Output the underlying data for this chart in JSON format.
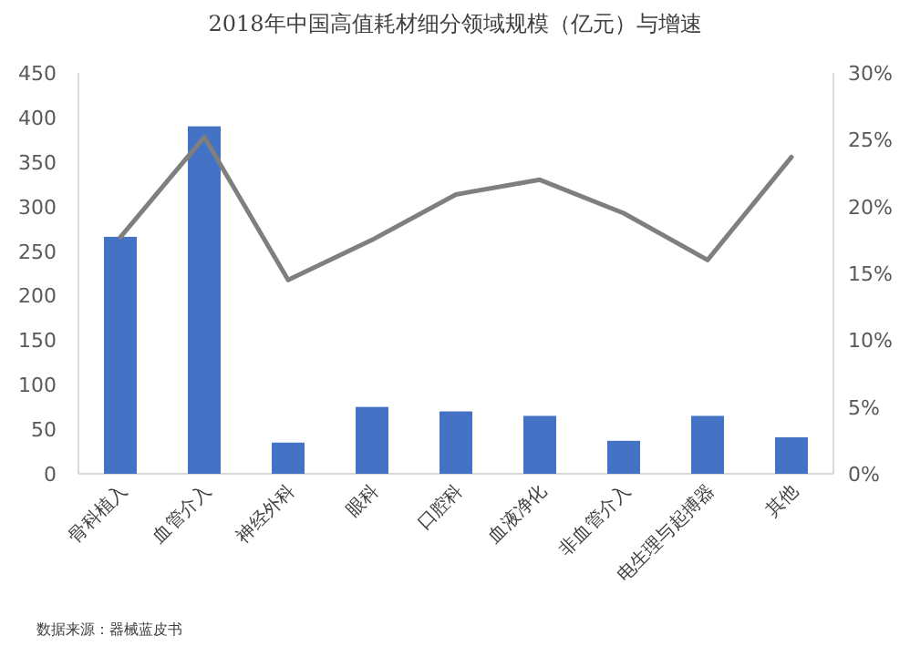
{
  "chart_data": {
    "type": "bar",
    "title": "2018年中国高值耗材细分领域规模（亿元）与增速",
    "categories": [
      "骨科植入",
      "血管介入",
      "神经外科",
      "眼科",
      "口腔科",
      "血液净化",
      "非血管介入",
      "电生理与起搏器",
      "其他"
    ],
    "series": [
      {
        "color": "#4472c4",
        "values": [
          266,
          390,
          35,
          75,
          70,
          65,
          37,
          65,
          41
        ]
      },
      {
        "type": "line",
        "axis": "y2",
        "color": "#7f7f7f",
        "values": [
          17.7,
          25.2,
          14.5,
          17.5,
          20.9,
          22.0,
          19.5,
          16.0,
          23.7
        ]
      }
    ],
    "ylim": [
      0,
      450
    ],
    "yticks": [
      0,
      50,
      100,
      150,
      200,
      250,
      300,
      350,
      400,
      450
    ],
    "y2lim": [
      0,
      30
    ],
    "y2ticks": [
      {
        "value": 0,
        "label": "0%"
      },
      {
        "value": 5,
        "label": "5%"
      },
      {
        "value": 10,
        "label": "10%"
      },
      {
        "value": 15,
        "label": "15%"
      },
      {
        "value": 20,
        "label": "20%"
      },
      {
        "value": 25,
        "label": "25%"
      },
      {
        "value": 30,
        "label": "30%"
      }
    ],
    "annotations": [
      "数据来源：器械蓝皮书"
    ]
  }
}
